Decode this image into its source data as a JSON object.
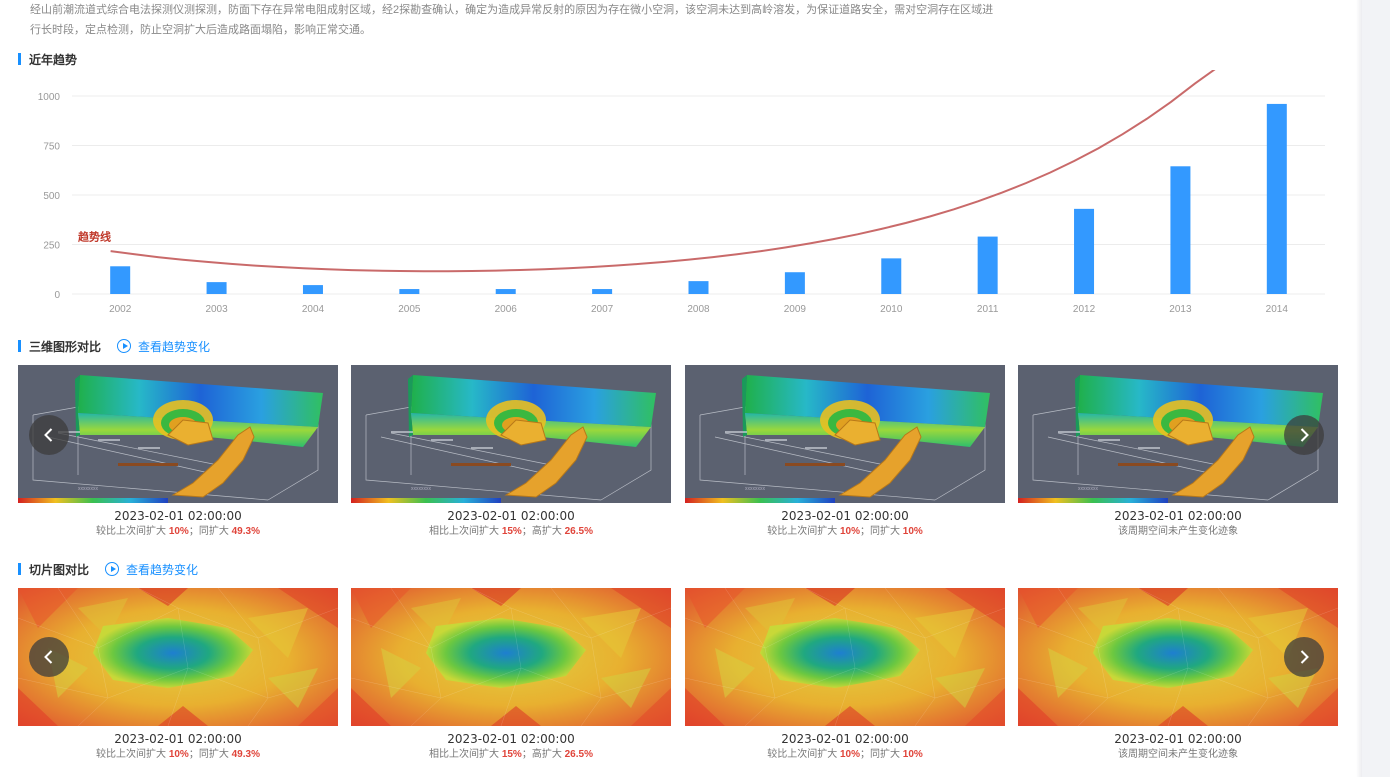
{
  "intro": {
    "line1": "经山前潮流道式综合电法探测仪测探测，防面下存在异常电阻成射区域，经2探勘查确认，确定为造成异常反射的原因为存在微小空洞，该空洞未达到高岭溶发，为保证道路安全，需对空洞存在区域进",
    "line2": "行长时段，定点检测，防止空洞扩大后造成路面塌陷，影响正常交通。"
  },
  "sections": {
    "trend_title": "近年趋势",
    "compare3d_title": "三维图形对比",
    "slice_title": "切片图对比",
    "view_trend_link": "查看趋势变化"
  },
  "chart_data": {
    "type": "bar",
    "categories": [
      "2002",
      "2003",
      "2004",
      "2005",
      "2006",
      "2007",
      "2008",
      "2009",
      "2010",
      "2011",
      "2012",
      "2013",
      "2014"
    ],
    "values": [
      140,
      60,
      45,
      25,
      25,
      25,
      65,
      110,
      180,
      290,
      430,
      645,
      960
    ],
    "ylim": [
      0,
      1000
    ],
    "yticks": [
      0,
      250,
      500,
      750,
      1000
    ],
    "annotation": "趋势线",
    "grid": true,
    "colors": {
      "bar": "#3399ff",
      "trend": "#c96a6a",
      "annotation": "#c0392b",
      "grid": "#ececec",
      "axis_text": "#999999"
    }
  },
  "cards3d": [
    {
      "timestamp": "2023-02-01 02:00:00",
      "pre": "较比上次间扩大 ",
      "v1": "10%",
      "mid": "；同扩大 ",
      "v2": "49.3%"
    },
    {
      "timestamp": "2023-02-01 02:00:00",
      "pre": "相比上次间扩大 ",
      "v1": "15%",
      "mid": "；高扩大 ",
      "v2": "26.5%"
    },
    {
      "timestamp": "2023-02-01 02:00:00",
      "pre": "较比上次间扩大 ",
      "v1": "10%",
      "mid": "；同扩大 ",
      "v2": "10%"
    },
    {
      "timestamp": "2023-02-01 02:00:00",
      "pre": "该周期空间未产生变化迹象",
      "v1": "",
      "mid": "",
      "v2": ""
    }
  ],
  "cardsSlice": [
    {
      "timestamp": "2023-02-01 02:00:00",
      "pre": "较比上次间扩大 ",
      "v1": "10%",
      "mid": "；同扩大 ",
      "v2": "49.3%"
    },
    {
      "timestamp": "2023-02-01 02:00:00",
      "pre": "相比上次间扩大 ",
      "v1": "15%",
      "mid": "；高扩大 ",
      "v2": "26.5%"
    },
    {
      "timestamp": "2023-02-01 02:00:00",
      "pre": "较比上次间扩大 ",
      "v1": "10%",
      "mid": "；同扩大 ",
      "v2": "10%"
    },
    {
      "timestamp": "2023-02-01 02:00:00",
      "pre": "该周期空间未产生变化迹象",
      "v1": "",
      "mid": "",
      "v2": ""
    }
  ],
  "icons": {
    "prev": "chevron-left-icon",
    "next": "chevron-right-icon",
    "play": "play-circle-icon"
  }
}
